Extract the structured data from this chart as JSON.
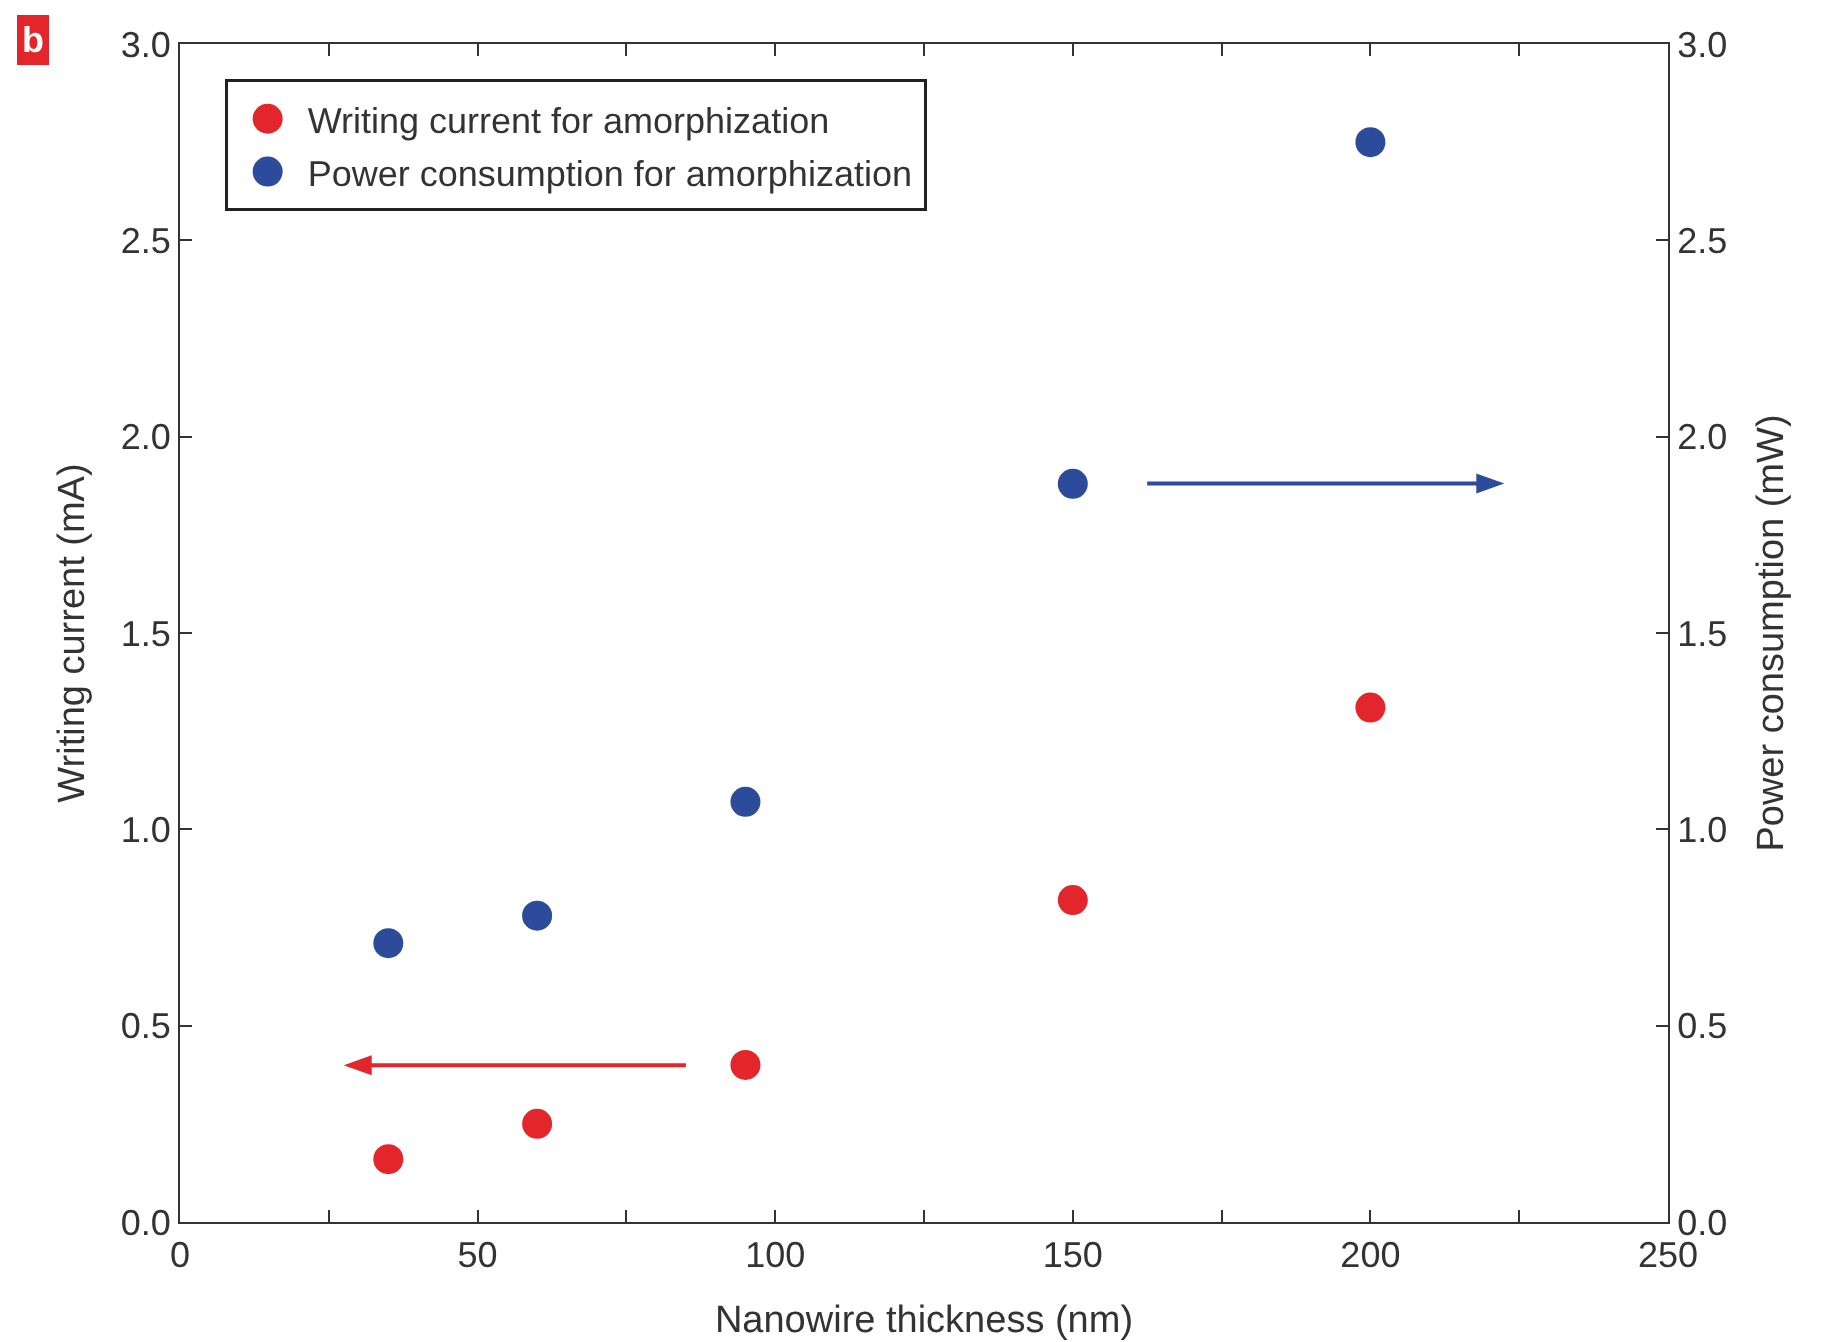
{
  "chart_data": {
    "type": "scatter",
    "xlabel": "Nanowire thickness (nm)",
    "ylabel": "Writing current (mA)",
    "y2label": "Power consumption (mW)",
    "annotations": [
      "b"
    ],
    "x": [
      35,
      60,
      95,
      150,
      200
    ],
    "series": [
      {
        "name": "Writing current for amorphization",
        "color": "#e3262b",
        "values": [
          0.16,
          0.25,
          0.4,
          0.82,
          1.31
        ]
      },
      {
        "name": "Power consumption for amorphization",
        "color": "#2d4b9b",
        "values": [
          0.71,
          0.78,
          1.07,
          1.88,
          2.75
        ],
        "axis": "y2"
      }
    ],
    "xlim": [
      0,
      250
    ],
    "xticks": [
      0,
      {
        "value": 25,
        "label": null
      },
      50,
      {
        "value": 75,
        "label": null
      },
      100,
      {
        "value": 125,
        "label": null
      },
      150,
      {
        "value": 175,
        "label": null
      },
      200,
      {
        "value": 225,
        "label": null
      },
      250
    ],
    "ylim": [
      0,
      3
    ],
    "yticks": [
      {
        "value": 0,
        "label": "0.0"
      },
      0.5,
      {
        "value": 1,
        "label": "1.0"
      },
      1.5,
      {
        "value": 2,
        "label": "2.0"
      },
      2.5,
      {
        "value": 3,
        "label": "3.0"
      }
    ],
    "y2lim": [
      0,
      3
    ],
    "y2ticks": [
      {
        "value": 0,
        "label": "0.0"
      },
      0.5,
      {
        "value": 1,
        "label": "1.0"
      },
      1.5,
      {
        "value": 2,
        "label": "2.0"
      },
      2.5,
      {
        "value": 3,
        "label": "3.0"
      }
    ],
    "marker": "circle",
    "grid": false,
    "legend": "top left"
  }
}
